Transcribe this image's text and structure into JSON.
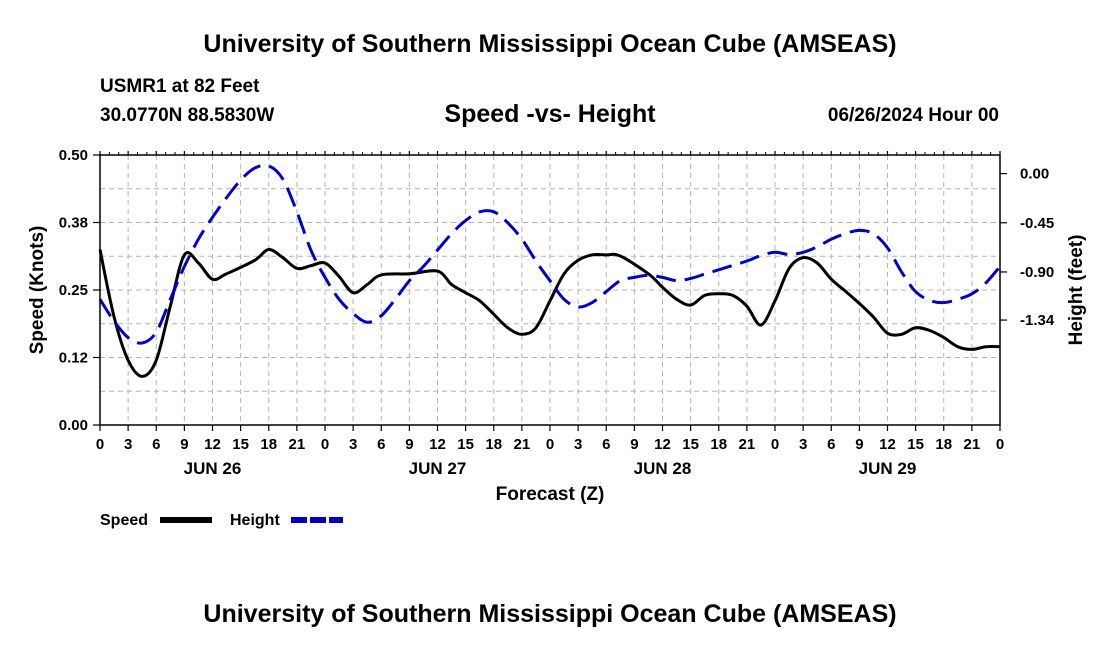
{
  "header": {
    "title": "University of Southern Mississippi Ocean Cube (AMSEAS)",
    "station": "USMR1 at 82 Feet",
    "coords": "30.0770N  88.5830W",
    "subtitle": "Speed -vs- Height",
    "datestamp": "06/26/2024 Hour 00"
  },
  "footer": {
    "title": "University of Southern Mississippi Ocean Cube (AMSEAS)"
  },
  "colors": {
    "speed": "#000000",
    "height": "#0000cc",
    "grid": "#b4b4b4"
  },
  "chart_data": {
    "type": "line",
    "title": "Speed -vs- Height",
    "xlabel": "Forecast (Z)",
    "ylabel": "Speed (Knots)",
    "y2label": "Height (feet)",
    "xlim": [
      0,
      96
    ],
    "ylim": [
      0.0,
      0.5
    ],
    "y2lim": [
      -2.3,
      0.17
    ],
    "x_tick_step": 3,
    "x_ticks": [
      "0",
      "3",
      "6",
      "9",
      "12",
      "15",
      "18",
      "21",
      "0",
      "3",
      "6",
      "9",
      "12",
      "15",
      "18",
      "21",
      "0",
      "3",
      "6",
      "9",
      "12",
      "15",
      "18",
      "21",
      "0",
      "3",
      "6",
      "9",
      "12",
      "15",
      "18",
      "21",
      "0"
    ],
    "day_labels": [
      {
        "label": "JUN 26",
        "x": 12
      },
      {
        "label": "JUN 27",
        "x": 36
      },
      {
        "label": "JUN 28",
        "x": 60
      },
      {
        "label": "JUN 29",
        "x": 84
      }
    ],
    "y_ticks": [
      "0.00",
      "0.12",
      "0.25",
      "0.38",
      "0.50"
    ],
    "y_tick_values": [
      0.0,
      0.125,
      0.25,
      0.375,
      0.5
    ],
    "y2_ticks": [
      "0.00",
      "-0.45",
      "-0.90",
      "-1.34"
    ],
    "y2_tick_values": [
      0.0,
      -0.45,
      -0.9,
      -1.34
    ],
    "legend": [
      {
        "name": "Speed",
        "style": "solid"
      },
      {
        "name": "Height",
        "style": "dashed"
      }
    ],
    "legend_position": "below-left",
    "grid": true,
    "series": [
      {
        "name": "Speed",
        "axis": "left",
        "x": [
          0,
          1.5,
          3,
          4.5,
          6,
          7.5,
          9,
          10.5,
          12,
          13.5,
          16.5,
          18,
          19.5,
          21,
          22.5,
          24,
          25.5,
          27,
          28.5,
          30,
          33,
          36,
          37.5,
          39,
          40.5,
          42,
          43.5,
          45,
          46.5,
          48,
          49.5,
          51,
          52.5,
          54,
          55.5,
          58.5,
          60,
          61.5,
          63,
          64.5,
          66,
          67.5,
          69,
          70.5,
          72,
          73.5,
          75,
          76.5,
          78,
          79.5,
          81,
          82.5,
          84,
          85.5,
          87,
          88.5,
          90,
          91.5,
          93,
          94.5,
          96
        ],
        "values": [
          0.325,
          0.2,
          0.12,
          0.09,
          0.12,
          0.22,
          0.315,
          0.3,
          0.27,
          0.28,
          0.305,
          0.325,
          0.31,
          0.29,
          0.295,
          0.3,
          0.275,
          0.245,
          0.26,
          0.278,
          0.28,
          0.285,
          0.26,
          0.245,
          0.23,
          0.205,
          0.18,
          0.168,
          0.18,
          0.23,
          0.28,
          0.305,
          0.315,
          0.315,
          0.313,
          0.28,
          0.255,
          0.233,
          0.222,
          0.24,
          0.243,
          0.24,
          0.22,
          0.185,
          0.23,
          0.29,
          0.31,
          0.3,
          0.27,
          0.248,
          0.225,
          0.2,
          0.17,
          0.168,
          0.18,
          0.175,
          0.162,
          0.145,
          0.14,
          0.145,
          0.145
        ]
      },
      {
        "name": "Height",
        "axis": "right",
        "x": [
          0,
          1.5,
          3,
          4.5,
          6,
          7.5,
          9,
          10.5,
          12,
          13.5,
          15,
          16.5,
          18,
          19.5,
          21,
          22.5,
          24,
          25.5,
          27,
          28.5,
          30,
          31.5,
          33,
          34.5,
          36,
          37.5,
          39,
          40.5,
          42,
          43.5,
          45,
          46.5,
          48,
          49.5,
          51,
          52.5,
          54,
          55.5,
          57,
          58.5,
          60,
          61.5,
          63,
          64.5,
          66,
          67.5,
          69,
          70.5,
          72,
          73.5,
          75,
          76.5,
          78,
          79.5,
          81,
          82.5,
          84,
          85.5,
          87,
          88.5,
          90,
          91.5,
          93,
          94.5,
          96
        ],
        "values": [
          -1.15,
          -1.35,
          -1.5,
          -1.55,
          -1.45,
          -1.15,
          -0.85,
          -0.6,
          -0.4,
          -0.22,
          -0.06,
          0.05,
          0.07,
          -0.05,
          -0.35,
          -0.7,
          -0.95,
          -1.15,
          -1.28,
          -1.36,
          -1.3,
          -1.15,
          -0.98,
          -0.85,
          -0.7,
          -0.55,
          -0.43,
          -0.35,
          -0.35,
          -0.45,
          -0.6,
          -0.8,
          -0.98,
          -1.15,
          -1.22,
          -1.18,
          -1.08,
          -0.98,
          -0.95,
          -0.93,
          -0.95,
          -0.98,
          -0.96,
          -0.92,
          -0.88,
          -0.84,
          -0.8,
          -0.75,
          -0.72,
          -0.74,
          -0.72,
          -0.67,
          -0.6,
          -0.55,
          -0.52,
          -0.55,
          -0.68,
          -0.9,
          -1.08,
          -1.16,
          -1.18,
          -1.15,
          -1.1,
          -1.0,
          -0.85
        ]
      }
    ]
  }
}
